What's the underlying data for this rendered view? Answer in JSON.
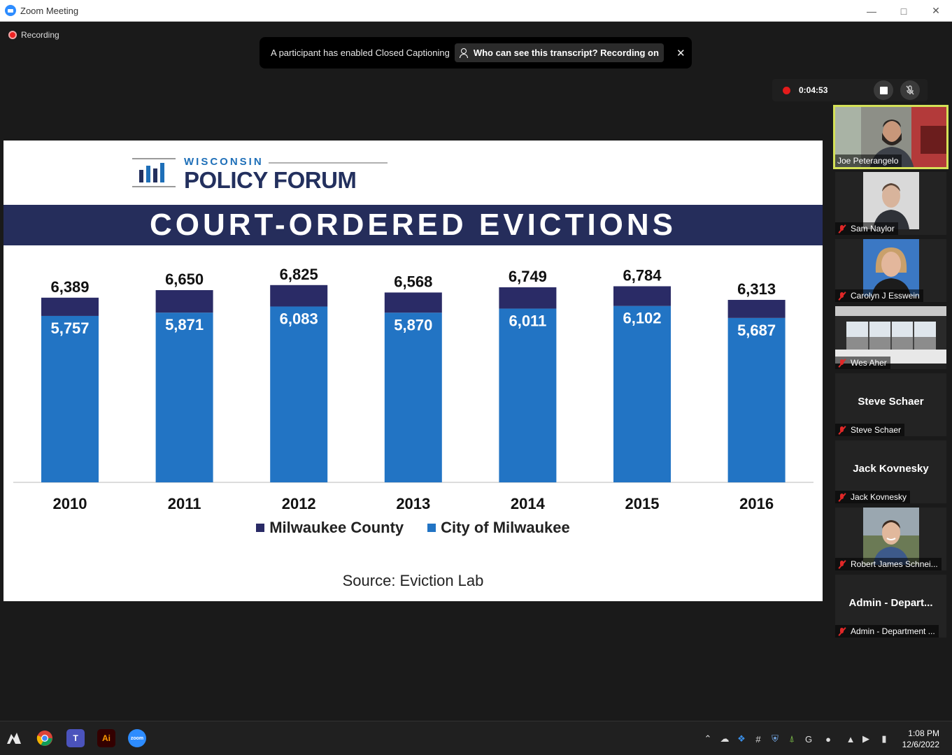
{
  "window": {
    "title": "Zoom Meeting"
  },
  "recording": {
    "label": "Recording",
    "timer": "0:04:53"
  },
  "banner": {
    "text": "A participant has enabled Closed Captioning",
    "pill": "Who can see this transcript? Recording on"
  },
  "slide": {
    "logo_top": "WISCONSIN",
    "logo_main": "POLICY FORUM",
    "title": "COURT-ORDERED EVICTIONS",
    "source": "Source: Eviction Lab"
  },
  "chart_data": {
    "type": "bar",
    "stacked": true,
    "title": "COURT-ORDERED EVICTIONS",
    "categories": [
      "2010",
      "2011",
      "2012",
      "2013",
      "2014",
      "2015",
      "2016"
    ],
    "series": [
      {
        "name": "City of Milwaukee",
        "color": "#2274c4",
        "values": [
          5757,
          5871,
          6083,
          5870,
          6011,
          6102,
          5687
        ],
        "labels": [
          "5,757",
          "5,871",
          "6,083",
          "5,870",
          "6,011",
          "6,102",
          "5,687"
        ]
      },
      {
        "name": "Milwaukee County",
        "color": "#2a2b66",
        "totals": [
          6389,
          6650,
          6825,
          6568,
          6749,
          6784,
          6313
        ],
        "total_labels": [
          "6,389",
          "6,650",
          "6,825",
          "6,568",
          "6,749",
          "6,784",
          "6,313"
        ]
      }
    ],
    "legend_position": "bottom",
    "gridlines": false
  },
  "legend": {
    "county": "Milwaukee County",
    "city": "City of Milwaukee"
  },
  "participants": [
    {
      "name": "Joe Peterangelo",
      "video": true,
      "muted": false,
      "active": true
    },
    {
      "name": "Sam Naylor",
      "video": true,
      "muted": true
    },
    {
      "name": "Carolyn J Esswein",
      "video": true,
      "muted": true
    },
    {
      "name": "Wes Aher",
      "video": true,
      "muted": true
    },
    {
      "name": "Steve Schaer",
      "display": "Steve Schaer",
      "video": false,
      "muted": true
    },
    {
      "name": "Jack Kovnesky",
      "display": "Jack Kovnesky",
      "video": false,
      "muted": true
    },
    {
      "name": "Robert James Schnei...",
      "video": true,
      "muted": true
    },
    {
      "name": "Admin - Department ...",
      "display": "Admin - Depart...",
      "video": false,
      "muted": true
    }
  ],
  "taskbar": {
    "apps": [
      "start-icon",
      "chrome-icon",
      "teams-icon",
      "illustrator-icon",
      "zoom-icon"
    ],
    "illustrator_label": "Ai",
    "zoom_label": "zoom",
    "time": "1:08 PM",
    "date": "12/6/2022"
  }
}
